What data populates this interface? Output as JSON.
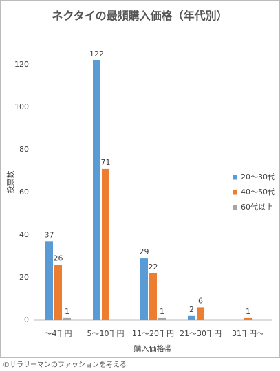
{
  "chart_data": {
    "type": "bar",
    "title": "ネクタイの最頻購入価格（年代別）",
    "x_label": "購入価格帯",
    "y_label": "投票数",
    "categories": [
      "～4千円",
      "5～10千円",
      "11～20千円",
      "21～30千円",
      "31千円～"
    ],
    "series": [
      {
        "name": "20～30代",
        "color": "#5b9bd5",
        "values": [
          37,
          122,
          29,
          2,
          null
        ]
      },
      {
        "name": "40～50代",
        "color": "#ed7d31",
        "values": [
          26,
          71,
          22,
          6,
          1
        ]
      },
      {
        "name": "60代以上",
        "color": "#a5a5a5",
        "values": [
          1,
          null,
          1,
          null,
          null
        ]
      }
    ],
    "ylim": [
      0,
      130
    ],
    "yticks": [
      0,
      20,
      40,
      60,
      80,
      100,
      120
    ],
    "grid": false,
    "legend": "right"
  },
  "footer": "©サラリーマンのファッションを考える"
}
